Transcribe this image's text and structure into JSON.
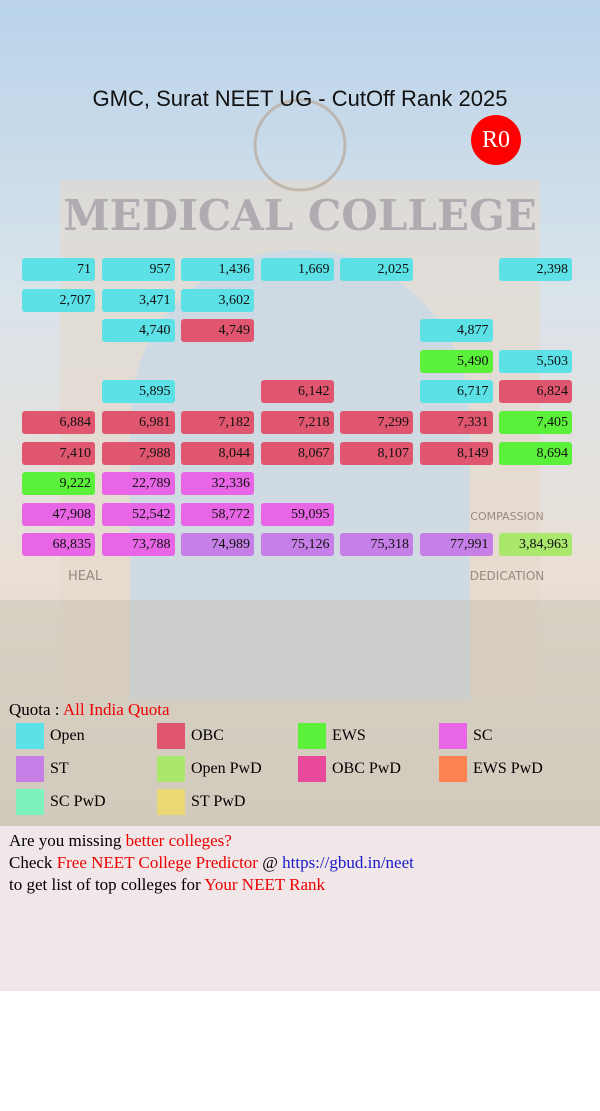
{
  "header": {
    "title": "GMC, Surat NEET UG - CutOff Rank 2025",
    "round": "R0"
  },
  "background_text": {
    "sign": "MEDICAL COLLEGE",
    "left_panel": "HEAL",
    "right_panel": "DEDICATION",
    "right_upper": "COMPASSION"
  },
  "grid": {
    "rows": [
      [
        {
          "rank": "71",
          "quota": "Open"
        },
        {
          "rank": "957",
          "quota": "Open"
        },
        {
          "rank": "1,436",
          "quota": "Open"
        },
        {
          "rank": "1,669",
          "quota": "Open"
        },
        {
          "rank": "2,025",
          "quota": "Open"
        },
        null,
        {
          "rank": "2,398",
          "quota": "Open"
        }
      ],
      [
        {
          "rank": "2,707",
          "quota": "Open"
        },
        {
          "rank": "3,471",
          "quota": "Open"
        },
        {
          "rank": "3,602",
          "quota": "Open"
        },
        null,
        null,
        null,
        null
      ],
      [
        null,
        {
          "rank": "4,740",
          "quota": "Open"
        },
        {
          "rank": "4,749",
          "quota": "OBC"
        },
        null,
        null,
        {
          "rank": "4,877",
          "quota": "Open"
        },
        null
      ],
      [
        null,
        null,
        null,
        null,
        null,
        {
          "rank": "5,490",
          "quota": "EWS"
        },
        {
          "rank": "5,503",
          "quota": "Open"
        }
      ],
      [
        null,
        {
          "rank": "5,895",
          "quota": "Open"
        },
        null,
        {
          "rank": "6,142",
          "quota": "OBC"
        },
        null,
        {
          "rank": "6,717",
          "quota": "Open"
        },
        {
          "rank": "6,824",
          "quota": "OBC"
        }
      ],
      [
        {
          "rank": "6,884",
          "quota": "OBC"
        },
        {
          "rank": "6,981",
          "quota": "OBC"
        },
        {
          "rank": "7,182",
          "quota": "OBC"
        },
        {
          "rank": "7,218",
          "quota": "OBC"
        },
        {
          "rank": "7,299",
          "quota": "OBC"
        },
        {
          "rank": "7,331",
          "quota": "OBC"
        },
        {
          "rank": "7,405",
          "quota": "EWS"
        }
      ],
      [
        {
          "rank": "7,410",
          "quota": "OBC"
        },
        {
          "rank": "7,988",
          "quota": "OBC"
        },
        {
          "rank": "8,044",
          "quota": "OBC"
        },
        {
          "rank": "8,067",
          "quota": "OBC"
        },
        {
          "rank": "8,107",
          "quota": "OBC"
        },
        {
          "rank": "8,149",
          "quota": "OBC"
        },
        {
          "rank": "8,694",
          "quota": "EWS"
        }
      ],
      [
        {
          "rank": "9,222",
          "quota": "EWS"
        },
        {
          "rank": "22,789",
          "quota": "SC"
        },
        {
          "rank": "32,336",
          "quota": "SC"
        },
        null,
        null,
        null,
        null
      ],
      [
        {
          "rank": "47,908",
          "quota": "SC"
        },
        {
          "rank": "52,542",
          "quota": "SC"
        },
        {
          "rank": "58,772",
          "quota": "SC"
        },
        {
          "rank": "59,095",
          "quota": "SC"
        },
        null,
        null,
        null
      ],
      [
        {
          "rank": "68,835",
          "quota": "SC"
        },
        {
          "rank": "73,788",
          "quota": "SC"
        },
        {
          "rank": "74,989",
          "quota": "ST"
        },
        {
          "rank": "75,126",
          "quota": "ST"
        },
        {
          "rank": "75,318",
          "quota": "ST"
        },
        {
          "rank": "77,991",
          "quota": "ST"
        },
        {
          "rank": "3,84,963",
          "quota": "Open PwD"
        }
      ]
    ]
  },
  "quota": {
    "label": "Quota :",
    "value": "All India Quota"
  },
  "legend": [
    {
      "name": "Open",
      "color": "#5ce1e6"
    },
    {
      "name": "OBC",
      "color": "#e0566f"
    },
    {
      "name": "EWS",
      "color": "#5bf03a"
    },
    {
      "name": "SC",
      "color": "#e866e6"
    },
    {
      "name": "ST",
      "color": "#c57fe6"
    },
    {
      "name": "Open PwD",
      "color": "#a9e86c"
    },
    {
      "name": "OBC PwD",
      "color": "#e8499a"
    },
    {
      "name": "EWS PwD",
      "color": "#ff8352"
    },
    {
      "name": "SC PwD",
      "color": "#7cf2bf"
    },
    {
      "name": "ST PwD",
      "color": "#e9d873"
    }
  ],
  "footer": {
    "line1": [
      {
        "text": "Are you missing",
        "style": "plain"
      },
      {
        "text": "better colleges?",
        "style": "red"
      }
    ],
    "line2": [
      {
        "text": "Check",
        "style": "plain"
      },
      {
        "text": "Free NEET College Predictor",
        "style": "red"
      },
      {
        "text": "@",
        "style": "plain"
      },
      {
        "text": "https://gbud.in/neet",
        "style": "link"
      }
    ],
    "line3": [
      {
        "text": "to get list of top colleges for",
        "style": "plain"
      },
      {
        "text": "Your NEET Rank",
        "style": "red"
      }
    ]
  }
}
